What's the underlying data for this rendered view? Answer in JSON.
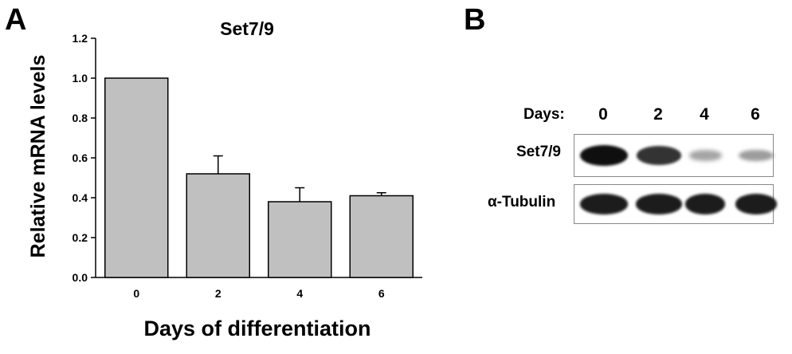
{
  "panels": {
    "a_label": "A",
    "b_label": "B"
  },
  "chart_data": {
    "type": "bar",
    "title": "Set7/9",
    "xlabel": "Days of differentiation",
    "ylabel": "Relative mRNA levels",
    "categories": [
      "0",
      "2",
      "4",
      "6"
    ],
    "values": [
      1.0,
      0.52,
      0.38,
      0.41
    ],
    "error_bars": [
      0.0,
      0.09,
      0.07,
      0.015
    ],
    "ylim": [
      0,
      1.2
    ],
    "yticks": [
      "0.0",
      "0.2",
      "0.4",
      "0.6",
      "0.8",
      "1.0",
      "1.2"
    ],
    "bar_color": "#c0c0c0",
    "grid": false,
    "legend": "none"
  },
  "blot": {
    "days_label": "Days:",
    "days": [
      "0",
      "2",
      "4",
      "6"
    ],
    "rows": [
      {
        "label": "Set7/9",
        "intensities": [
          1.0,
          0.85,
          0.28,
          0.32
        ]
      },
      {
        "label": "α-Tubulin",
        "intensities": [
          0.95,
          0.95,
          0.95,
          0.95
        ]
      }
    ]
  }
}
